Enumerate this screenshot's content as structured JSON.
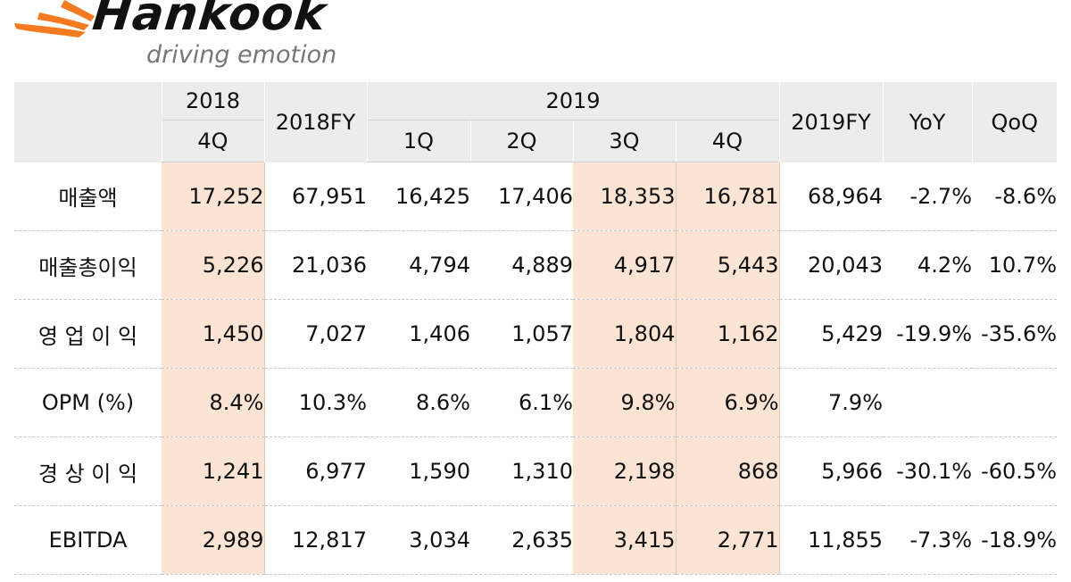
{
  "brand": {
    "name": "Hankook",
    "tagline": "driving emotion",
    "colors": {
      "accent": "#f47a20",
      "text": "#111111",
      "tagline": "#777777",
      "highlight": "#fbe4d4",
      "header_bg": "#ececec"
    },
    "icon": "hankook-tire-emblem-icon"
  },
  "table": {
    "header": {
      "year_2018": "2018",
      "q_2018": "4Q",
      "fy_2018": "2018FY",
      "year_2019": "2019",
      "quarters_2019": [
        "1Q",
        "2Q",
        "3Q",
        "4Q"
      ],
      "fy_2019": "2019FY",
      "yoy": "YoY",
      "qoq": "QoQ"
    },
    "rows": [
      {
        "label": "매출액",
        "cells": [
          "17,252",
          "67,951",
          "16,425",
          "17,406",
          "18,353",
          "16,781",
          "68,964",
          "-2.7%",
          "-8.6%"
        ]
      },
      {
        "label": "매출총이익",
        "cells": [
          "5,226",
          "21,036",
          "4,794",
          "4,889",
          "4,917",
          "5,443",
          "20,043",
          "4.2%",
          "10.7%"
        ]
      },
      {
        "label": "영 업 이 익",
        "cells": [
          "1,450",
          "7,027",
          "1,406",
          "1,057",
          "1,804",
          "1,162",
          "5,429",
          "-19.9%",
          "-35.6%"
        ]
      },
      {
        "label": "OPM (%)",
        "cells": [
          "8.4%",
          "10.3%",
          "8.6%",
          "6.1%",
          "9.8%",
          "6.9%",
          "7.9%",
          "",
          ""
        ]
      },
      {
        "label": "경 상 이 익",
        "cells": [
          "1,241",
          "6,977",
          "1,590",
          "1,310",
          "2,198",
          "868",
          "5,966",
          "-30.1%",
          "-60.5%"
        ]
      },
      {
        "label": "EBITDA",
        "cells": [
          "2,989",
          "12,817",
          "3,034",
          "2,635",
          "3,415",
          "2,771",
          "11,855",
          "-7.3%",
          "-18.9%"
        ]
      }
    ]
  }
}
